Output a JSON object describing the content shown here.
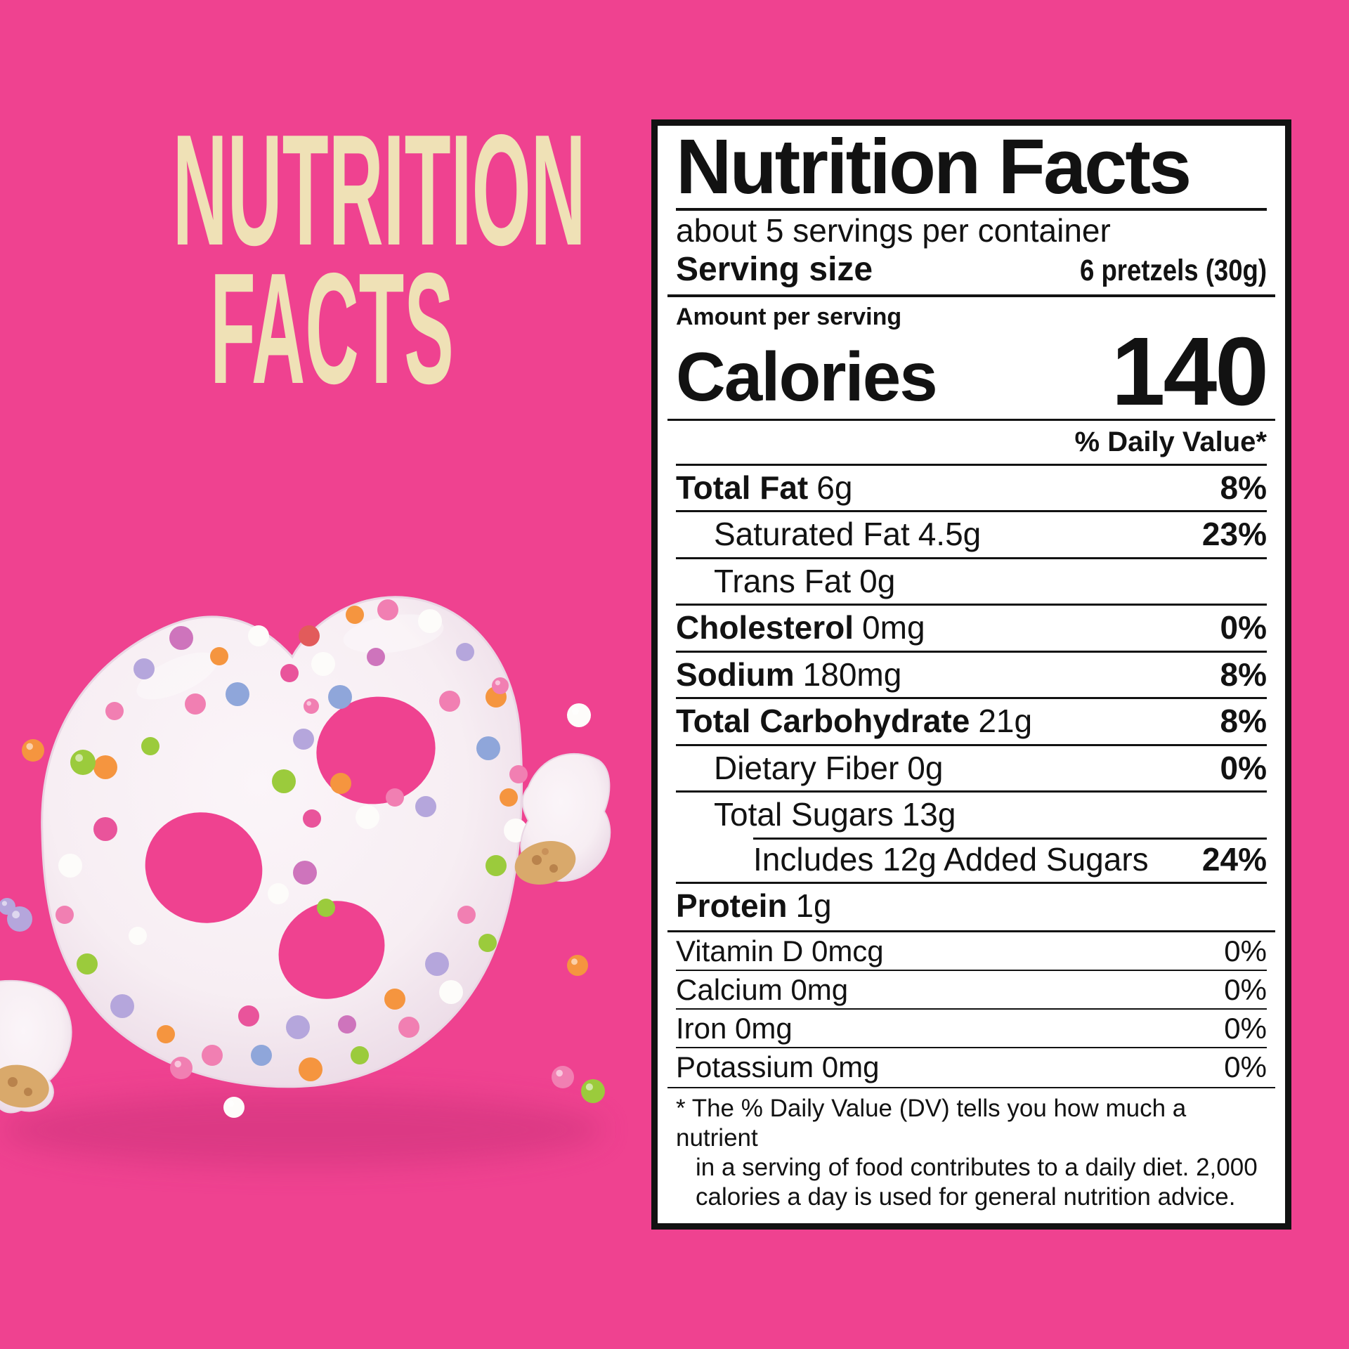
{
  "background": "#EF4290",
  "hero": {
    "line1": "NUTRITION",
    "line2": "FACTS",
    "color": "#EFE1B6"
  },
  "label": {
    "title": "Nutrition Facts",
    "servings_per_container": "about 5 servings per container",
    "serving_size_label": "Serving size",
    "serving_size_value": "6 pretzels (30g)",
    "amount_per_serving": "Amount per serving",
    "calories_label": "Calories",
    "calories_value": "140",
    "dv_header": "% Daily Value*",
    "rows": [
      {
        "name": "Total Fat",
        "amount": "6g",
        "dv": "8%",
        "bold": true,
        "indent": 0
      },
      {
        "name": "Saturated Fat",
        "amount": "4.5g",
        "dv": "23%",
        "bold": false,
        "indent": 1
      },
      {
        "name": "Trans Fat",
        "amount": "0g",
        "dv": "",
        "bold": false,
        "indent": 1
      },
      {
        "name": "Cholesterol",
        "amount": "0mg",
        "dv": "0%",
        "bold": true,
        "indent": 0
      },
      {
        "name": "Sodium",
        "amount": "180mg",
        "dv": "8%",
        "bold": true,
        "indent": 0
      },
      {
        "name": "Total Carbohydrate",
        "amount": "21g",
        "dv": "8%",
        "bold": true,
        "indent": 0
      },
      {
        "name": "Dietary Fiber",
        "amount": "0g",
        "dv": "0%",
        "bold": false,
        "indent": 1
      },
      {
        "name": "Total Sugars",
        "amount": "13g",
        "dv": "",
        "bold": false,
        "indent": 1
      },
      {
        "name": "Includes 12g Added Sugars",
        "amount": "",
        "dv": "24%",
        "bold": false,
        "indent": 2,
        "sep_indent": true
      },
      {
        "name": "Protein",
        "amount": "1g",
        "dv": "",
        "bold": true,
        "indent": 0
      }
    ],
    "micros": [
      {
        "name": "Vitamin D",
        "amount": "0mcg",
        "dv": "0%"
      },
      {
        "name": "Calcium",
        "amount": "0mg",
        "dv": "0%"
      },
      {
        "name": "Iron",
        "amount": "0mg",
        "dv": "0%"
      },
      {
        "name": "Potassium",
        "amount": "0mg",
        "dv": "0%"
      }
    ],
    "footnote_lines": [
      "* The % Daily Value (DV) tells you how much a nutrient",
      "in a serving of food contributes to a daily diet. 2,000",
      "calories a day is used for general nutrition advice."
    ]
  },
  "art": {
    "coating": "#F7EEF3",
    "coating_light": "#FBF5F9",
    "coating_edge": "#E9D7E4",
    "cracker": "#D9A96B",
    "crumb": "#B9834C",
    "shadow": "#C22E74",
    "sprinkle_palette": {
      "white": "#FDFCFA",
      "pink": "#F17FB2",
      "hotpink": "#E9549B",
      "red": "#E25B5B",
      "orange": "#F5953F",
      "green": "#9BCB3C",
      "lavender": "#B5A6DC",
      "periwinkle": "#8FA6DA",
      "magenta": "#CE74BC"
    }
  }
}
